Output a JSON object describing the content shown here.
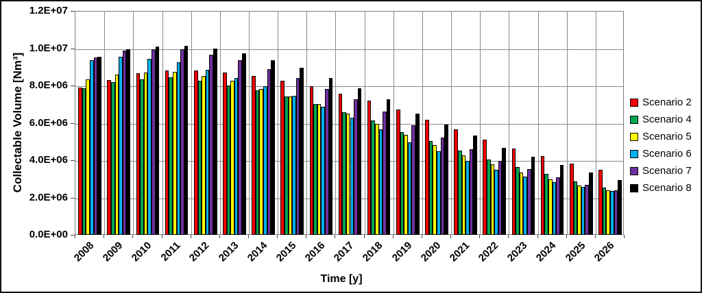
{
  "chart_data": {
    "type": "bar",
    "title": "",
    "xlabel": "Time [y]",
    "ylabel": "Collectable Volume [Nm³]",
    "ylim": [
      0,
      12000000
    ],
    "ytick_step": 2000000,
    "ytick_labels": [
      "0.0E+00",
      "2.0E+06",
      "4.0E+06",
      "6.0E+06",
      "8.0E+06",
      "1.0E+07",
      "1.2E+07"
    ],
    "grid": true,
    "legend_position": "right-outside",
    "categories": [
      "2008",
      "2009",
      "2010",
      "2011",
      "2012",
      "2013",
      "2014",
      "2015",
      "2016",
      "2017",
      "2018",
      "2019",
      "2020",
      "2021",
      "2022",
      "2023",
      "2024",
      "2025",
      "2026"
    ],
    "series": [
      {
        "name": "Scenario 2",
        "color": "#f40000",
        "values": [
          7950000,
          8350000,
          8700000,
          8850000,
          8850000,
          8750000,
          8550000,
          8300000,
          8000000,
          7600000,
          7250000,
          6750000,
          6200000,
          5700000,
          5150000,
          4650000,
          4250000,
          3850000,
          3500000
        ]
      },
      {
        "name": "Scenario 4",
        "color": "#00a651",
        "values": [
          7900000,
          8250000,
          8400000,
          8500000,
          8300000,
          8050000,
          7800000,
          7450000,
          7050000,
          6600000,
          6150000,
          5550000,
          5050000,
          4550000,
          4050000,
          3650000,
          3300000,
          2900000,
          2550000
        ]
      },
      {
        "name": "Scenario 5",
        "color": "#ffff00",
        "values": [
          8400000,
          8650000,
          8750000,
          8800000,
          8550000,
          8300000,
          7850000,
          7450000,
          7050000,
          6550000,
          6000000,
          5400000,
          4850000,
          4300000,
          3800000,
          3350000,
          3000000,
          2650000,
          2400000
        ]
      },
      {
        "name": "Scenario 6",
        "color": "#00b0f0",
        "values": [
          9400000,
          9600000,
          9500000,
          9300000,
          8900000,
          8450000,
          8000000,
          7500000,
          6900000,
          6300000,
          5700000,
          5000000,
          4500000,
          4000000,
          3500000,
          3150000,
          2850000,
          2600000,
          2350000
        ]
      },
      {
        "name": "Scenario 7",
        "color": "#7030a0",
        "values": [
          9550000,
          9950000,
          10000000,
          10000000,
          9700000,
          9400000,
          8950000,
          8450000,
          7850000,
          7300000,
          6650000,
          5900000,
          5250000,
          4600000,
          4000000,
          3550000,
          3100000,
          2700000,
          2400000
        ]
      },
      {
        "name": "Scenario 8",
        "color": "#000000",
        "values": [
          9600000,
          10000000,
          10150000,
          10200000,
          10050000,
          9800000,
          9400000,
          9000000,
          8450000,
          7900000,
          7300000,
          6550000,
          5950000,
          5350000,
          4700000,
          4200000,
          3750000,
          3350000,
          2950000
        ]
      }
    ]
  }
}
